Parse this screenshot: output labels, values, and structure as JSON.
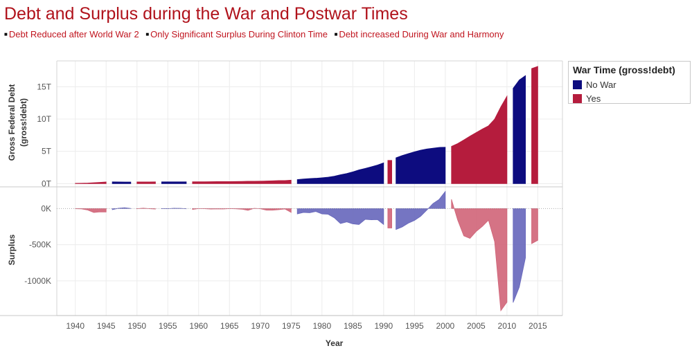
{
  "title": "Debt and Surplus during the War and Postwar Times",
  "notes": [
    "Debt Reduced after World War 2",
    "Only Significant Surplus During Clinton Time",
    "Debt increased During War and Harmony"
  ],
  "legend": {
    "title": "War Time (gross!debt)",
    "items": [
      {
        "label": "No War",
        "color": "#0d0c7f"
      },
      {
        "label": "Yes",
        "color": "#b51c3d"
      }
    ]
  },
  "chart_data": {
    "type": "area",
    "xlabel": "Year",
    "x_ticks": [
      1940,
      1945,
      1950,
      1955,
      1960,
      1965,
      1970,
      1975,
      1980,
      1985,
      1990,
      1995,
      2000,
      2005,
      2010,
      2015
    ],
    "xlim": [
      1937,
      2019
    ],
    "colors": {
      "no_war": "#0d0c7f",
      "war": "#b51c3d",
      "no_war_light": "#6666bb",
      "war_light": "#d06478"
    },
    "top_panel": {
      "ylabel": "Gross Federal Debt (gross!debt)",
      "y_ticks": [
        {
          "value": 0,
          "label": "0T"
        },
        {
          "value": 5,
          "label": "5T"
        },
        {
          "value": 10,
          "label": "10T"
        },
        {
          "value": 15,
          "label": "15T"
        }
      ],
      "ylim": [
        -0.5,
        19
      ],
      "unit": "trillions"
    },
    "bottom_panel": {
      "ylabel": "Surplus",
      "y_ticks": [
        {
          "value": 0,
          "label": "0K"
        },
        {
          "value": -500,
          "label": "-500K"
        },
        {
          "value": -1000,
          "label": "-1000K"
        }
      ],
      "ylim": [
        -1480,
        300
      ],
      "unit": "thousands"
    },
    "segments": [
      {
        "war": "Yes",
        "years": [
          1940,
          1941,
          1942,
          1943,
          1944,
          1945
        ],
        "debt": [
          0.05,
          0.06,
          0.08,
          0.14,
          0.2,
          0.26
        ],
        "surplus": [
          -3,
          -5,
          -20,
          -55,
          -47,
          -48
        ]
      },
      {
        "war": "No",
        "years": [
          1946,
          1947,
          1948,
          1949
        ],
        "debt": [
          0.27,
          0.26,
          0.25,
          0.25
        ],
        "surplus": [
          -16,
          4,
          12,
          1
        ]
      },
      {
        "war": "Yes",
        "years": [
          1950,
          1951,
          1952,
          1953
        ],
        "debt": [
          0.26,
          0.26,
          0.26,
          0.27
        ],
        "surplus": [
          -3,
          6,
          -2,
          -7
        ]
      },
      {
        "war": "No",
        "years": [
          1954,
          1955,
          1956,
          1957,
          1958
        ],
        "debt": [
          0.27,
          0.27,
          0.27,
          0.27,
          0.28
        ],
        "surplus": [
          -1,
          -3,
          4,
          3,
          -3
        ]
      },
      {
        "war": "Yes",
        "years": [
          1959,
          1960,
          1961,
          1962,
          1963,
          1964,
          1965,
          1966,
          1967,
          1968,
          1969,
          1970,
          1971,
          1972,
          1973,
          1974,
          1975
        ],
        "debt": [
          0.29,
          0.29,
          0.29,
          0.3,
          0.31,
          0.32,
          0.32,
          0.33,
          0.34,
          0.37,
          0.37,
          0.38,
          0.41,
          0.44,
          0.47,
          0.48,
          0.54
        ],
        "surplus": [
          -13,
          0,
          -3,
          -7,
          -5,
          -6,
          -1,
          -4,
          -9,
          -25,
          3,
          -3,
          -23,
          -23,
          -15,
          -6,
          -53
        ]
      },
      {
        "war": "No",
        "years": [
          1976,
          1977,
          1978,
          1979,
          1980,
          1981,
          1982,
          1983,
          1984,
          1985,
          1986,
          1987,
          1988,
          1989,
          1990
        ],
        "debt": [
          0.63,
          0.71,
          0.78,
          0.83,
          0.91,
          1.0,
          1.14,
          1.37,
          1.56,
          1.82,
          2.12,
          2.35,
          2.6,
          2.87,
          3.21
        ],
        "surplus": [
          -74,
          -54,
          -59,
          -41,
          -74,
          -79,
          -128,
          -208,
          -185,
          -212,
          -221,
          -150,
          -155,
          -153,
          -221
        ]
      },
      {
        "war": "Yes",
        "years": [
          1991
        ],
        "debt": [
          3.6
        ],
        "surplus": [
          -269
        ]
      },
      {
        "war": "No",
        "years": [
          1992,
          1993,
          1994,
          1995,
          1996,
          1997,
          1998,
          1999,
          2000
        ],
        "debt": [
          4.0,
          4.35,
          4.64,
          4.92,
          5.18,
          5.37,
          5.48,
          5.61,
          5.63
        ],
        "surplus": [
          -290,
          -255,
          -203,
          -164,
          -107,
          -22,
          69,
          126,
          236
        ]
      },
      {
        "war": "Yes",
        "years": [
          2001,
          2002,
          2003,
          2004,
          2005,
          2006,
          2007,
          2008,
          2009,
          2010
        ],
        "debt": [
          5.77,
          6.2,
          6.76,
          7.35,
          7.9,
          8.45,
          8.95,
          9.99,
          11.88,
          13.53
        ],
        "surplus": [
          128,
          -158,
          -378,
          -413,
          -318,
          -248,
          -161,
          -459,
          -1413,
          -1294
        ]
      },
      {
        "war": "No",
        "years": [
          2011,
          2012,
          2013
        ],
        "debt": [
          14.76,
          16.05,
          16.72
        ],
        "surplus": [
          -1300,
          -1087,
          -680
        ]
      },
      {
        "war": "Yes",
        "years": [
          2014,
          2015
        ],
        "debt": [
          17.82,
          18.15
        ],
        "surplus": [
          -485,
          -439
        ]
      }
    ]
  }
}
